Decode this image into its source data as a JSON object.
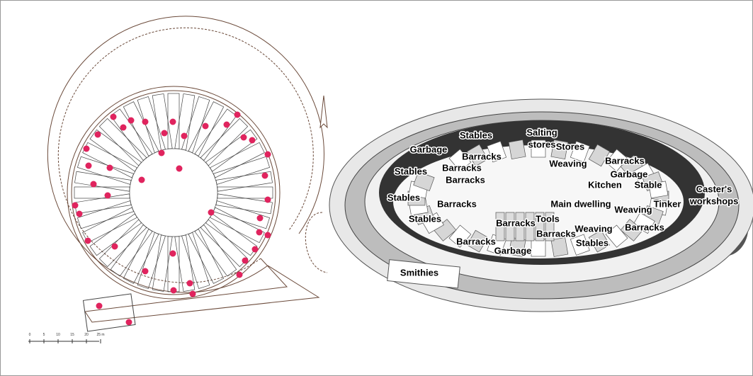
{
  "diagram": {
    "labels": [
      {
        "text": "Stables"
      },
      {
        "text": "Salting"
      },
      {
        "text": "stores"
      },
      {
        "text": "Garbage"
      },
      {
        "text": "Barracks"
      },
      {
        "text": "Stores"
      },
      {
        "text": "Barracks"
      },
      {
        "text": "Stables"
      },
      {
        "text": "Barracks"
      },
      {
        "text": "Weaving"
      },
      {
        "text": "Barracks"
      },
      {
        "text": "Garbage"
      },
      {
        "text": "Kitchen"
      },
      {
        "text": "Stable"
      },
      {
        "text": "Caster's"
      },
      {
        "text": "workshops"
      },
      {
        "text": "Stables"
      },
      {
        "text": "Barracks"
      },
      {
        "text": "Main dwelling"
      },
      {
        "text": "Weaving"
      },
      {
        "text": "Tinker"
      },
      {
        "text": "Stables"
      },
      {
        "text": "Tools"
      },
      {
        "text": "Barracks"
      },
      {
        "text": "Weaving"
      },
      {
        "text": "Barracks"
      },
      {
        "text": "Barracks"
      },
      {
        "text": "Stables"
      },
      {
        "text": "Barracks"
      },
      {
        "text": "Garbage"
      },
      {
        "text": "Smithies"
      }
    ],
    "scale_bar": {
      "ticks": [
        "0",
        "5",
        "10",
        "15",
        "20",
        "25 m"
      ]
    }
  }
}
